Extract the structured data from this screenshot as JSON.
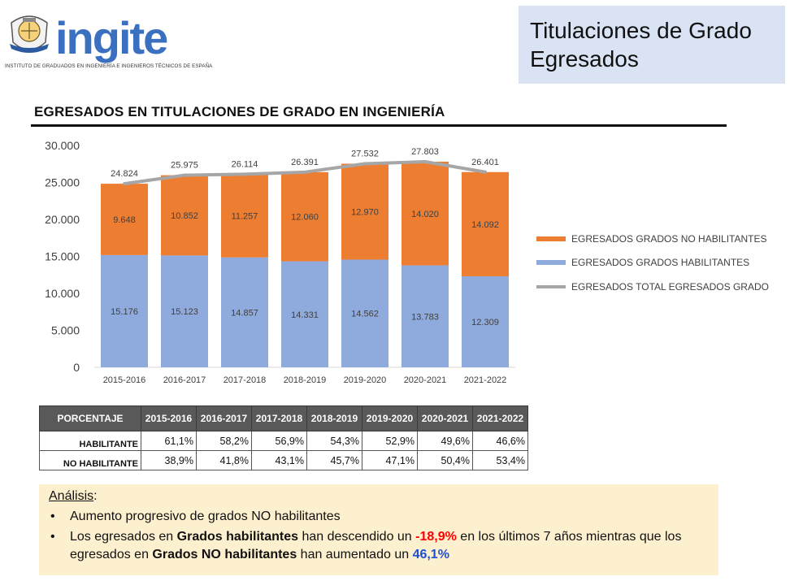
{
  "header": {
    "logo_wordmark": "ingite",
    "logo_subtitle": "INSTITUTO DE GRADUADOS EN INGENIERÍA E INGENIEROS TÉCNICOS DE ESPAÑA",
    "title_line1": "Titulaciones de Grado",
    "title_line2": "Egresados"
  },
  "chart_heading": "EGRESADOS EN TITULACIONES DE GRADO EN INGENIERÍA",
  "chart_data": {
    "type": "bar",
    "stacked": true,
    "categories": [
      "2015-2016",
      "2016-2017",
      "2017-2018",
      "2018-2019",
      "2019-2020",
      "2020-2021",
      "2021-2022"
    ],
    "series": [
      {
        "name": "EGRESADOS GRADOS HABILITANTES",
        "type": "bar",
        "color": "#8faadc",
        "values": [
          15176,
          15123,
          14857,
          14331,
          14562,
          13783,
          12309
        ],
        "labels": [
          "15.176",
          "15.123",
          "14.857",
          "14.331",
          "14.562",
          "13.783",
          "12.309"
        ]
      },
      {
        "name": "EGRESADOS GRADOS NO HABILITANTES",
        "type": "bar",
        "color": "#ed7d31",
        "values": [
          9648,
          10852,
          11257,
          12060,
          12970,
          14020,
          14092
        ],
        "labels": [
          "9.648",
          "10.852",
          "11.257",
          "12.060",
          "12.970",
          "14.020",
          "14.092"
        ]
      },
      {
        "name": "EGRESADOS TOTAL EGRESADOS GRADO",
        "type": "line",
        "color": "#a6a6a6",
        "values": [
          24824,
          25975,
          26114,
          26391,
          27532,
          27803,
          26401
        ],
        "labels": [
          "24.824",
          "25.975",
          "26.114",
          "26.391",
          "27.532",
          "27.803",
          "26.401"
        ]
      }
    ],
    "ylim": [
      0,
      30000
    ],
    "yticks": [
      "0",
      "5.000",
      "10.000",
      "15.000",
      "20.000",
      "25.000",
      "30.000"
    ],
    "grid": false,
    "legend_position": "right",
    "legend_order": [
      "EGRESADOS GRADOS NO HABILITANTES",
      "EGRESADOS GRADOS HABILITANTES",
      "EGRESADOS TOTAL EGRESADOS GRADO"
    ]
  },
  "table": {
    "headers": [
      "PORCENTAJE",
      "2015-2016",
      "2016-2017",
      "2017-2018",
      "2018-2019",
      "2019-2020",
      "2020-2021",
      "2021-2022"
    ],
    "rows": [
      {
        "label": "HABILITANTE",
        "values": [
          "61,1%",
          "58,2%",
          "56,9%",
          "54,3%",
          "52,9%",
          "49,6%",
          "46,6%"
        ]
      },
      {
        "label": "NO HABILITANTE",
        "values": [
          "38,9%",
          "41,8%",
          "43,1%",
          "45,7%",
          "47,1%",
          "50,4%",
          "53,4%"
        ]
      }
    ]
  },
  "analysis": {
    "heading": "Análisis",
    "heading_suffix": ":",
    "bullet1": "Aumento progresivo de grados NO habilitantes",
    "bullet2": {
      "t1": "Los egresados en ",
      "b1": "Grados habilitantes",
      "t2": " han descendido un ",
      "red": "-18,9%",
      "t3": " en los últimos 7 años mientras que los egresados en ",
      "b2": "Grados NO habilitantes",
      "t4": " han aumentado un ",
      "blue": "46,1%"
    }
  }
}
